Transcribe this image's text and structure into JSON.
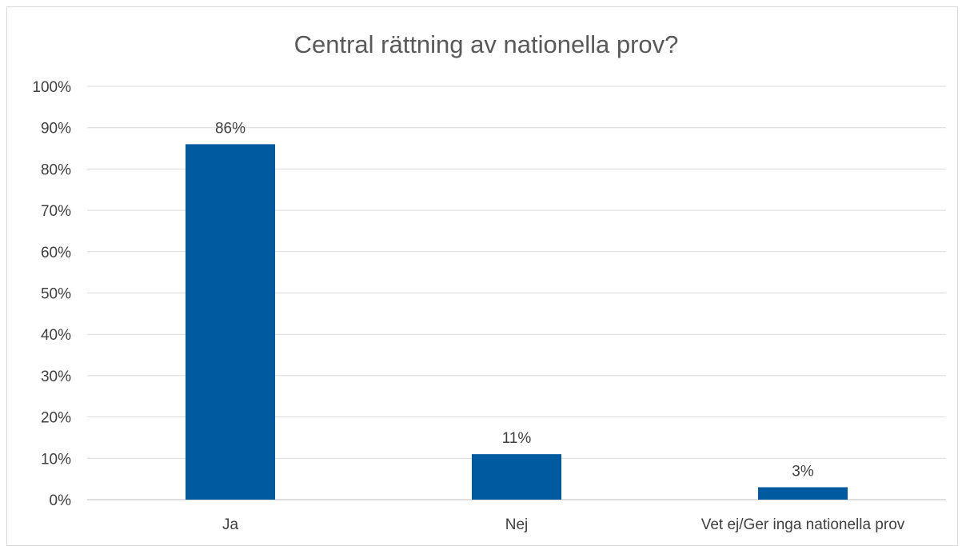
{
  "chart_data": {
    "type": "bar",
    "title": "Central rättning av nationella prov?",
    "categories": [
      "Ja",
      "Nej",
      "Vet ej/Ger inga nationella prov"
    ],
    "values": [
      86,
      11,
      3
    ],
    "data_labels": [
      "86%",
      "11%",
      "3%"
    ],
    "ylim": [
      0,
      100
    ],
    "y_ticks": [
      0,
      10,
      20,
      30,
      40,
      50,
      60,
      70,
      80,
      90,
      100
    ],
    "y_tick_labels": [
      "0%",
      "10%",
      "20%",
      "30%",
      "40%",
      "50%",
      "60%",
      "70%",
      "80%",
      "90%",
      "100%"
    ],
    "xlabel": "",
    "ylabel": "",
    "grid": true,
    "legend": "none",
    "bar_color": "#005aa0"
  }
}
